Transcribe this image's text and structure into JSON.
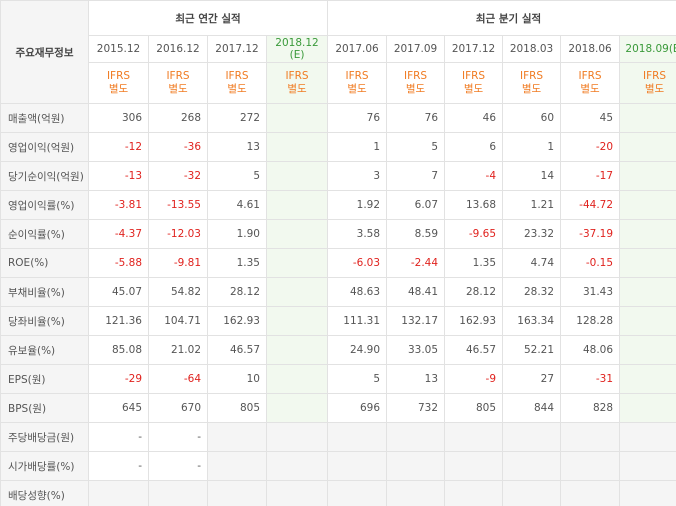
{
  "table": {
    "stub_header": "주요재무정보",
    "groups": [
      {
        "label": "최근 연간 실적",
        "span": 4
      },
      {
        "label": "최근 분기 실적",
        "span": 6
      }
    ],
    "columns": [
      {
        "period": "2015.12"
      },
      {
        "period": "2016.12"
      },
      {
        "period": "2017.12"
      },
      {
        "period": "2018.12",
        "note": "(E)",
        "estimate": true
      },
      {
        "period": "2017.06"
      },
      {
        "period": "2017.09"
      },
      {
        "period": "2017.12"
      },
      {
        "period": "2018.03"
      },
      {
        "period": "2018.06"
      },
      {
        "period": "2018.09(E)",
        "estimate": true
      }
    ],
    "basis": {
      "standard": "IFRS",
      "type": "별도"
    },
    "rows": [
      {
        "label": "매출액(억원)",
        "annual": [
          "306",
          "268",
          "272"
        ],
        "quarterly": [
          "76",
          "76",
          "46",
          "60",
          "45"
        ]
      },
      {
        "label": "영업이익(억원)",
        "annual": [
          "-12",
          "-36",
          "13"
        ],
        "quarterly": [
          "1",
          "5",
          "6",
          "1",
          "-20"
        ]
      },
      {
        "label": "당기순이익(억원)",
        "annual": [
          "-13",
          "-32",
          "5"
        ],
        "quarterly": [
          "3",
          "7",
          "-4",
          "14",
          "-17"
        ]
      },
      {
        "label": "영업이익률(%)",
        "annual": [
          "-3.81",
          "-13.55",
          "4.61"
        ],
        "quarterly": [
          "1.92",
          "6.07",
          "13.68",
          "1.21",
          "-44.72"
        ]
      },
      {
        "label": "순이익률(%)",
        "annual": [
          "-4.37",
          "-12.03",
          "1.90"
        ],
        "quarterly": [
          "3.58",
          "8.59",
          "-9.65",
          "23.32",
          "-37.19"
        ]
      },
      {
        "label": "ROE(%)",
        "annual": [
          "-5.88",
          "-9.81",
          "1.35"
        ],
        "quarterly": [
          "-6.03",
          "-2.44",
          "1.35",
          "4.74",
          "-0.15"
        ]
      },
      {
        "label": "부채비율(%)",
        "annual": [
          "45.07",
          "54.82",
          "28.12"
        ],
        "quarterly": [
          "48.63",
          "48.41",
          "28.12",
          "28.32",
          "31.43"
        ]
      },
      {
        "label": "당좌비율(%)",
        "annual": [
          "121.36",
          "104.71",
          "162.93"
        ],
        "quarterly": [
          "111.31",
          "132.17",
          "162.93",
          "163.34",
          "128.28"
        ]
      },
      {
        "label": "유보율(%)",
        "annual": [
          "85.08",
          "21.02",
          "46.57"
        ],
        "quarterly": [
          "24.90",
          "33.05",
          "46.57",
          "52.21",
          "48.06"
        ]
      },
      {
        "label": "EPS(원)",
        "annual": [
          "-29",
          "-64",
          "10"
        ],
        "quarterly": [
          "5",
          "13",
          "-9",
          "27",
          "-31"
        ]
      },
      {
        "label": "BPS(원)",
        "annual": [
          "645",
          "670",
          "805"
        ],
        "quarterly": [
          "696",
          "732",
          "805",
          "844",
          "828"
        ]
      },
      {
        "label": "주당배당금(원)",
        "annual": [
          "-",
          "-"
        ],
        "no_data": true
      },
      {
        "label": "시가배당률(%)",
        "annual": [
          "-",
          "-"
        ],
        "no_data": true
      },
      {
        "label": "배당성향(%)",
        "no_data": true
      }
    ]
  }
}
